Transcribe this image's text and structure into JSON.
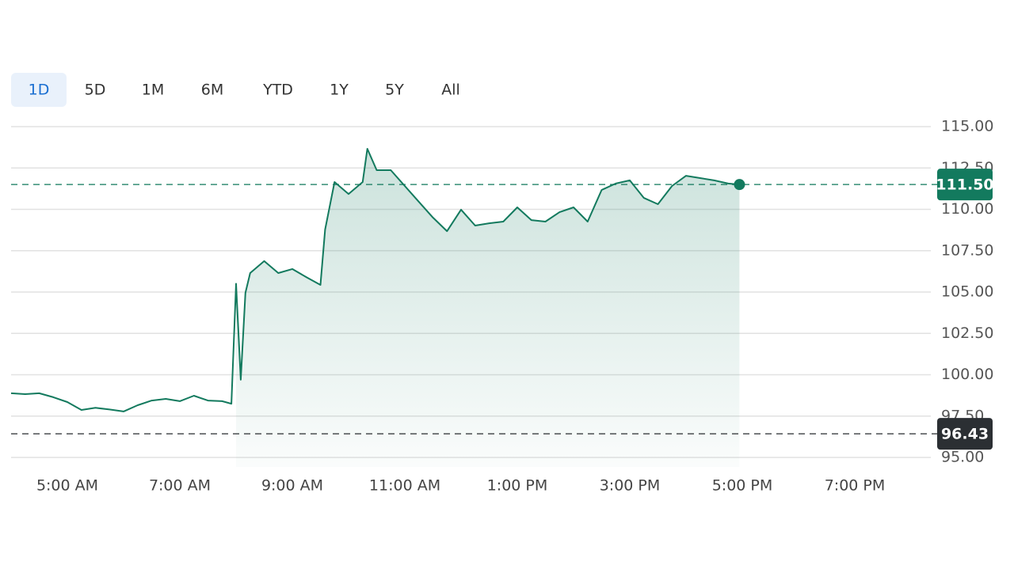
{
  "tabs": [
    "1D",
    "5D",
    "1M",
    "6M",
    "YTD",
    "1Y",
    "5Y",
    "All"
  ],
  "selected_tab": 0,
  "chart_data": {
    "type": "line",
    "x": [
      4,
      4.25,
      4.5,
      4.75,
      5,
      5.25,
      5.5,
      5.75,
      6,
      6.25,
      6.5,
      6.75,
      7,
      7.25,
      7.5,
      7.75,
      7.9167,
      8,
      8.0833,
      8.1667,
      8.25,
      8.5,
      8.75,
      9,
      9.25,
      9.5,
      9.5833,
      9.75,
      10,
      10.25,
      10.3333,
      10.5,
      10.75,
      11,
      11.25,
      11.5,
      11.75,
      12,
      12.25,
      12.5,
      12.75,
      13,
      13.25,
      13.5,
      13.75,
      14,
      14.25,
      14.5,
      14.75,
      15,
      15.25,
      15.5,
      15.75,
      16,
      16.25,
      16.5,
      16.75,
      16.95
    ],
    "series": [
      {
        "color": "#137a5e",
        "values": [
          98.88,
          98.83,
          98.88,
          98.64,
          98.35,
          97.87,
          98.0,
          97.9,
          97.78,
          98.16,
          98.44,
          98.54,
          98.4,
          98.73,
          98.44,
          98.4,
          98.25,
          105.5,
          99.7,
          104.95,
          106.15,
          106.87,
          106.15,
          106.39,
          105.9,
          105.43,
          108.78,
          111.65,
          110.93,
          111.65,
          113.66,
          112.37,
          112.37,
          111.41,
          110.45,
          109.5,
          108.68,
          109.98,
          109.02,
          109.16,
          109.26,
          110.12,
          109.35,
          109.26,
          109.83,
          110.12,
          109.26,
          111.17,
          111.56,
          111.75,
          110.69,
          110.31,
          111.41,
          112.03,
          111.89,
          111.75,
          111.56,
          111.5
        ]
      }
    ],
    "xlim": [
      4,
      20
    ],
    "xticks": [
      {
        "value": 5,
        "label": "5:00 AM"
      },
      {
        "value": 7,
        "label": "7:00 AM"
      },
      {
        "value": 9,
        "label": "9:00 AM"
      },
      {
        "value": 11,
        "label": "11:00 AM"
      },
      {
        "value": 13,
        "label": "1:00 PM"
      },
      {
        "value": 15,
        "label": "3:00 PM"
      },
      {
        "value": 17,
        "label": "5:00 PM"
      },
      {
        "value": 19,
        "label": "7:00 PM"
      }
    ],
    "ylim": [
      95,
      115
    ],
    "yticks": [
      {
        "value": 95,
        "label": "95.00"
      },
      {
        "value": 97.5,
        "label": "97.50"
      },
      {
        "value": 100,
        "label": "100.00"
      },
      {
        "value": 102.5,
        "label": "102.50"
      },
      {
        "value": 105,
        "label": "105.00"
      },
      {
        "value": 107.5,
        "label": "107.50"
      },
      {
        "value": 110,
        "label": "110.00"
      },
      {
        "value": 112.5,
        "label": "112.50"
      },
      {
        "value": 115,
        "label": "115.00"
      }
    ],
    "grid": true,
    "reference_lines": [
      {
        "value": 111.5,
        "label": "111.50",
        "color": "#137a5e"
      },
      {
        "value": 96.43,
        "label": "96.43",
        "color": "#2b2f33"
      }
    ]
  }
}
